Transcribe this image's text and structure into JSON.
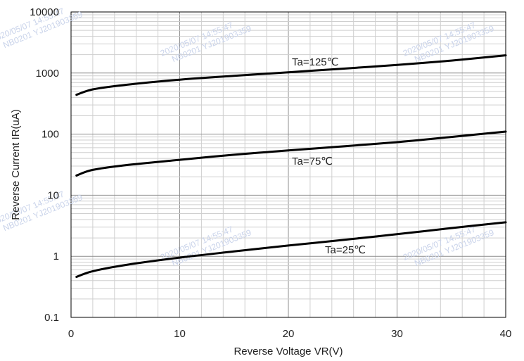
{
  "chart_data": {
    "type": "line",
    "title": "",
    "xlabel": "Reverse Voltage   VR(V)",
    "ylabel": "Reverse Current    IR(uA)",
    "xlim": [
      0,
      40
    ],
    "ylim": [
      0.1,
      10000
    ],
    "yscale": "log",
    "grid": true,
    "x_ticks": [
      {
        "value": 0,
        "label": "0"
      },
      {
        "value": 10,
        "label": "10"
      },
      {
        "value": 20,
        "label": "20"
      },
      {
        "value": 30,
        "label": "30"
      },
      {
        "value": 40,
        "label": "40"
      }
    ],
    "y_ticks": [
      {
        "value": 0.1,
        "label": "0.1"
      },
      {
        "value": 1,
        "label": "1"
      },
      {
        "value": 10,
        "label": "10"
      },
      {
        "value": 100,
        "label": "100"
      },
      {
        "value": 1000,
        "label": "1000"
      },
      {
        "value": 10000,
        "label": "10000"
      }
    ],
    "series": [
      {
        "name": "Ta=125℃",
        "x": [
          0.5,
          2,
          5,
          10,
          15,
          20,
          25,
          30,
          35,
          40
        ],
        "values": [
          440,
          540,
          640,
          780,
          900,
          1030,
          1180,
          1360,
          1600,
          1950
        ]
      },
      {
        "name": "Ta=75℃",
        "x": [
          0.5,
          2,
          5,
          10,
          15,
          20,
          25,
          30,
          35,
          40
        ],
        "values": [
          21,
          26,
          31,
          38,
          46,
          54,
          63,
          74,
          90,
          110
        ]
      },
      {
        "name": "Ta=25℃",
        "x": [
          0.5,
          2,
          5,
          10,
          15,
          20,
          25,
          30,
          35,
          40
        ],
        "values": [
          0.46,
          0.57,
          0.72,
          0.95,
          1.2,
          1.5,
          1.85,
          2.3,
          2.9,
          3.6
        ]
      }
    ],
    "labels": [
      {
        "text": "Ta=125℃",
        "series": 0
      },
      {
        "text": "Ta=75℃",
        "series": 1
      },
      {
        "text": "Ta=25℃",
        "series": 2
      }
    ]
  },
  "watermark": {
    "line1": "2020/05/07  14:55:47",
    "line2": "NB0201  YJ201903359"
  }
}
